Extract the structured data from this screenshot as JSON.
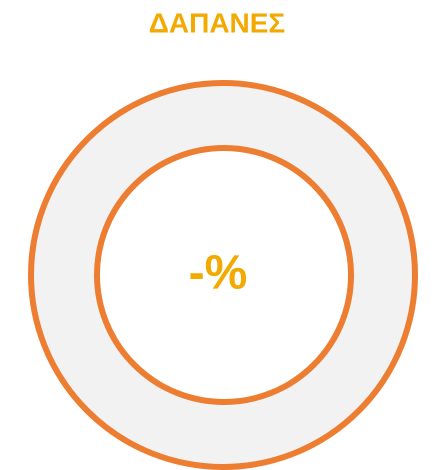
{
  "title": "ΔΑΠΑΝΕΣ",
  "center_label": "-%"
}
